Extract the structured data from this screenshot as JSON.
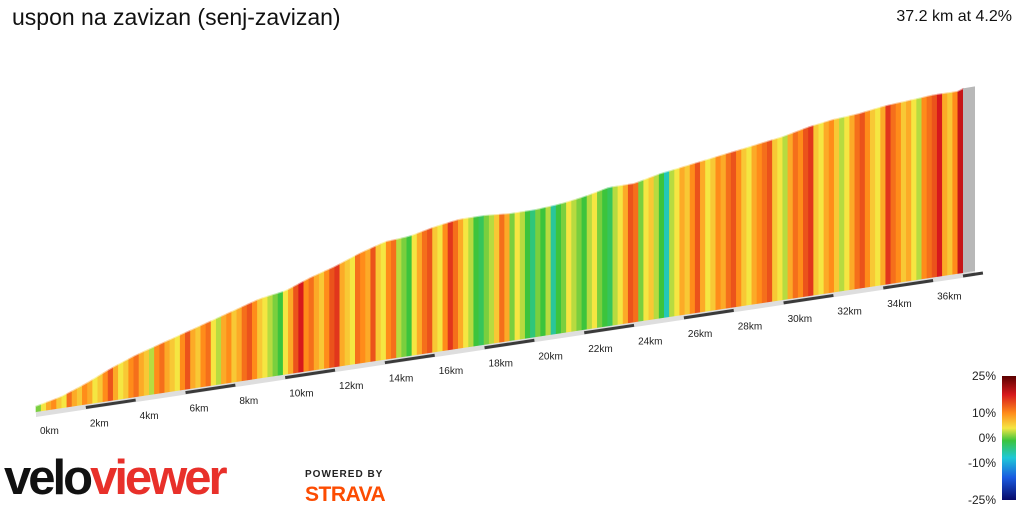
{
  "header": {
    "title": "uspon na zavizan (senj-zavizan)",
    "summary": "37.2 km at 4.2%"
  },
  "chart_data": {
    "type": "area",
    "title": "uspon na zavizan (senj-zavizan)",
    "distance_km": 37.2,
    "average_gradient_pct": 4.2,
    "xlim": [
      0,
      37.2
    ],
    "x_ticks": [
      0,
      2,
      4,
      6,
      8,
      10,
      12,
      14,
      16,
      18,
      20,
      22,
      24,
      26,
      28,
      30,
      32,
      34,
      36
    ],
    "x_tick_labels": [
      "0km",
      "2km",
      "4km",
      "6km",
      "8km",
      "10km",
      "12km",
      "14km",
      "16km",
      "18km",
      "20km",
      "22km",
      "24km",
      "26km",
      "28km",
      "30km",
      "32km",
      "34km",
      "36km"
    ],
    "elevation_profile": {
      "x_km": [
        0,
        1,
        2,
        3,
        4,
        5,
        6,
        7,
        8,
        9,
        10,
        11,
        12,
        13,
        14,
        15,
        16,
        17,
        18,
        19,
        20,
        21,
        22,
        23,
        24,
        25,
        26,
        27,
        28,
        29,
        30,
        31,
        32,
        33,
        34,
        35,
        36,
        37,
        37.2
      ],
      "relative_height": [
        0.0,
        0.03,
        0.08,
        0.14,
        0.19,
        0.23,
        0.27,
        0.31,
        0.35,
        0.39,
        0.41,
        0.46,
        0.5,
        0.55,
        0.59,
        0.6,
        0.63,
        0.65,
        0.65,
        0.64,
        0.64,
        0.65,
        0.67,
        0.7,
        0.7,
        0.73,
        0.75,
        0.77,
        0.79,
        0.81,
        0.83,
        0.86,
        0.88,
        0.89,
        0.91,
        0.92,
        0.93,
        0.93,
        0.94
      ]
    },
    "gradient_pct": [
      1,
      3,
      5,
      6,
      4,
      3,
      7,
      5,
      4,
      6,
      5,
      3,
      4,
      6,
      8,
      5,
      3,
      4,
      6,
      7,
      5,
      4,
      2,
      6,
      7,
      5,
      4,
      3,
      6,
      8,
      5,
      4,
      6,
      7,
      3,
      2,
      5,
      6,
      4,
      5,
      7,
      8,
      6,
      4,
      3,
      2,
      1,
      0,
      3,
      5,
      8,
      10,
      6,
      7,
      5,
      4,
      6,
      8,
      9,
      5,
      4,
      3,
      7,
      6,
      5,
      8,
      4,
      3,
      6,
      7,
      2,
      1,
      0,
      3,
      5,
      7,
      8,
      4,
      3,
      6,
      9,
      7,
      5,
      3,
      2,
      0,
      -1,
      1,
      2,
      4,
      7,
      5,
      1,
      3,
      2,
      0,
      -2,
      1,
      0,
      2,
      -3,
      0,
      1,
      3,
      2,
      1,
      0,
      2,
      3,
      1,
      0,
      -1,
      2,
      3,
      5,
      8,
      7,
      1,
      3,
      4,
      2,
      0,
      -4,
      2,
      3,
      5,
      4,
      6,
      8,
      5,
      3,
      4,
      6,
      5,
      7,
      8,
      6,
      4,
      3,
      5,
      6,
      7,
      8,
      4,
      3,
      2,
      5,
      7,
      6,
      8,
      9,
      4,
      3,
      5,
      6,
      4,
      2,
      3,
      5,
      7,
      8,
      6,
      4,
      3,
      5,
      9,
      7,
      6,
      4,
      5,
      3,
      2,
      6,
      7,
      8,
      10,
      5,
      4,
      6,
      12
    ],
    "legend": {
      "type": "colorbar",
      "labels": [
        "25%",
        "10%",
        "0%",
        "-10%",
        "-25%"
      ],
      "values": [
        25,
        10,
        0,
        -10,
        -25
      ],
      "placement": "bottom-right"
    },
    "colors": {
      "steep": "#8b0000",
      "hard": "#e31a1c",
      "moderate": "#ff8c1a",
      "easy": "#f0e442",
      "flat": "#4cc94c",
      "descent": "#1ec8d8",
      "steep_descent": "#0a2a9a"
    }
  },
  "branding": {
    "logo_text": "veloviewer",
    "powered_by": "POWERED BY",
    "partner": "STRAVA",
    "colors": {
      "velo": "#111111",
      "viewer": "#e8302a",
      "strava": "#fc4c02"
    }
  }
}
